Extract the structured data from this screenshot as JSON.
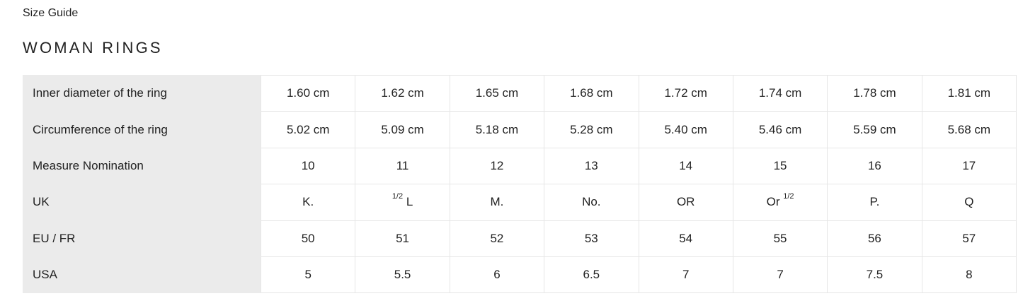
{
  "breadcrumb": "Size Guide",
  "title": "WOMAN RINGS",
  "table": {
    "rows": [
      {
        "label": "Inner diameter of the ring",
        "cells": [
          {
            "main": "1.60 cm"
          },
          {
            "main": "1.62 cm"
          },
          {
            "main": "1.65 cm"
          },
          {
            "main": "1.68 cm"
          },
          {
            "main": "1.72 cm"
          },
          {
            "main": "1.74 cm"
          },
          {
            "main": "1.78 cm"
          },
          {
            "main": "1.81 cm"
          }
        ]
      },
      {
        "label": "Circumference of the ring",
        "cells": [
          {
            "main": "5.02 cm"
          },
          {
            "main": "5.09 cm"
          },
          {
            "main": "5.18 cm"
          },
          {
            "main": "5.28 cm"
          },
          {
            "main": "5.40 cm"
          },
          {
            "main": "5.46 cm"
          },
          {
            "main": "5.59 cm"
          },
          {
            "main": "5.68 cm"
          }
        ]
      },
      {
        "label": "Measure Nomination",
        "cells": [
          {
            "main": "10"
          },
          {
            "main": "11"
          },
          {
            "main": "12"
          },
          {
            "main": "13"
          },
          {
            "main": "14"
          },
          {
            "main": "15"
          },
          {
            "main": "16"
          },
          {
            "main": "17"
          }
        ]
      },
      {
        "label": "UK",
        "cells": [
          {
            "main": "K."
          },
          {
            "sup_before": "1/2",
            "main": "L"
          },
          {
            "main": "M."
          },
          {
            "main": "No."
          },
          {
            "main": "OR"
          },
          {
            "main": "Or",
            "sup_after": "1/2"
          },
          {
            "main": "P."
          },
          {
            "main": "Q"
          }
        ]
      },
      {
        "label": "EU / FR",
        "cells": [
          {
            "main": "50"
          },
          {
            "main": "51"
          },
          {
            "main": "52"
          },
          {
            "main": "53"
          },
          {
            "main": "54"
          },
          {
            "main": "55"
          },
          {
            "main": "56"
          },
          {
            "main": "57"
          }
        ]
      },
      {
        "label": "USA",
        "cells": [
          {
            "main": "5"
          },
          {
            "main": "5.5"
          },
          {
            "main": "6"
          },
          {
            "main": "6.5"
          },
          {
            "main": "7"
          },
          {
            "main": "7"
          },
          {
            "main": "7.5"
          },
          {
            "main": "8"
          }
        ]
      }
    ]
  }
}
